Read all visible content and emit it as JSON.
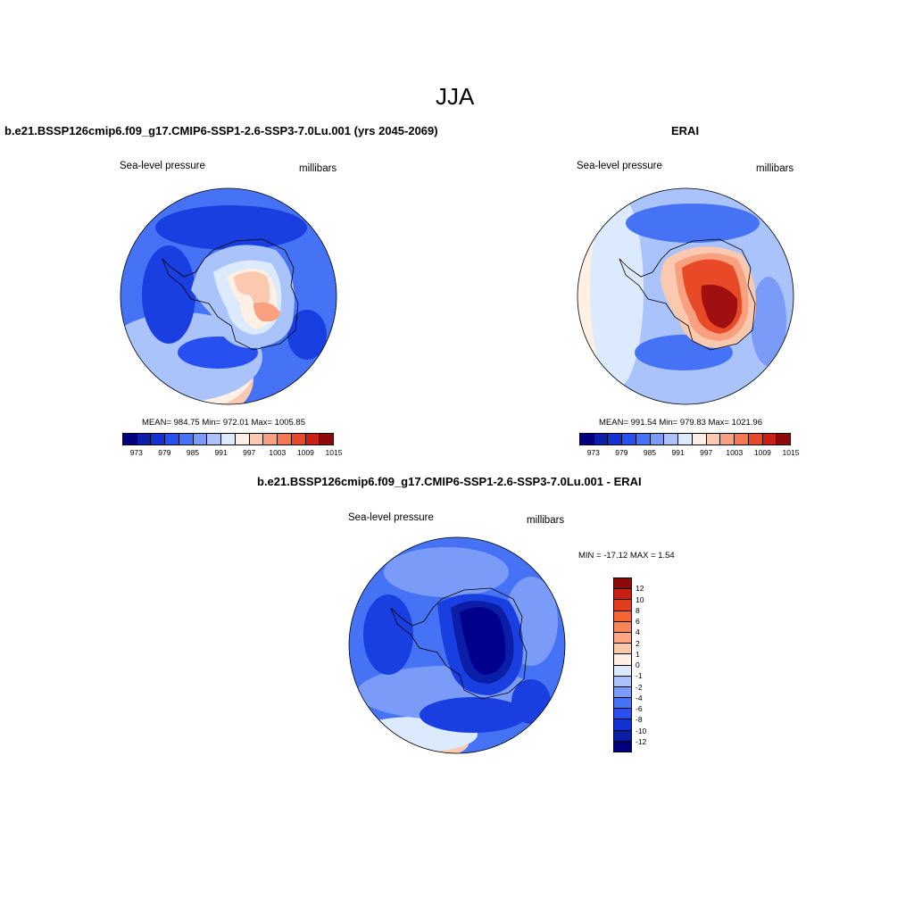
{
  "figure_title": "JJA",
  "panels": [
    {
      "title": "b.e21.BSSP126cmip6.f09_g17.CMIP6-SSP1-2.6-SSP3-7.0Lu.001 (yrs 2045-2069)",
      "variable_label": "Sea-level pressure",
      "units_label": "millibars",
      "stats_text": "MEAN= 984.75  Min= 972.01  Max= 1005.85"
    },
    {
      "title": "ERAI",
      "variable_label": "Sea-level pressure",
      "units_label": "millibars",
      "stats_text": "MEAN= 991.54  Min= 979.83  Max= 1021.96"
    },
    {
      "title": "b.e21.BSSP126cmip6.f09_g17.CMIP6-SSP1-2.6-SSP3-7.0Lu.001 - ERAI",
      "variable_label": "Sea-level pressure",
      "units_label": "millibars",
      "stats_text": "MIN = -17.12 MAX =   1.54"
    }
  ],
  "abs_colorbar": {
    "colors": [
      "#00007f",
      "#0a1ea8",
      "#1432d2",
      "#2850f0",
      "#4673f5",
      "#7a9cf8",
      "#aac4fb",
      "#dceafd",
      "#fef0e4",
      "#fbc8b0",
      "#f8a080",
      "#f57850",
      "#e84a28",
      "#c81e14",
      "#8c0a0a"
    ],
    "tick_labels": [
      "973",
      "979",
      "985",
      "991",
      "997",
      "1003",
      "1009",
      "1015"
    ]
  },
  "diff_colorbar": {
    "colors": [
      "#8c0a0a",
      "#c81e14",
      "#e03c1e",
      "#f56432",
      "#f8855a",
      "#fba582",
      "#fbc8aa",
      "#fef0e4",
      "#dceafd",
      "#aac4fb",
      "#7a9cf8",
      "#4673f5",
      "#2850f0",
      "#1432d2",
      "#0a1ea8",
      "#00007f"
    ],
    "tick_labels": [
      "12",
      "10",
      "8",
      "6",
      "4",
      "2",
      "1",
      "0",
      "-1",
      "-2",
      "-4",
      "-6",
      "-8",
      "-10",
      "-12"
    ]
  },
  "map_colors": {
    "deep_blue": "#00008c",
    "blue": "#1a3fe0",
    "mid_blue": "#4673f5",
    "light_blue": "#aac4fb",
    "pale": "#dceafd",
    "cream": "#fef0e4",
    "salmon": "#f8a080",
    "orange_red": "#e84a28",
    "dark_red": "#a01010"
  }
}
